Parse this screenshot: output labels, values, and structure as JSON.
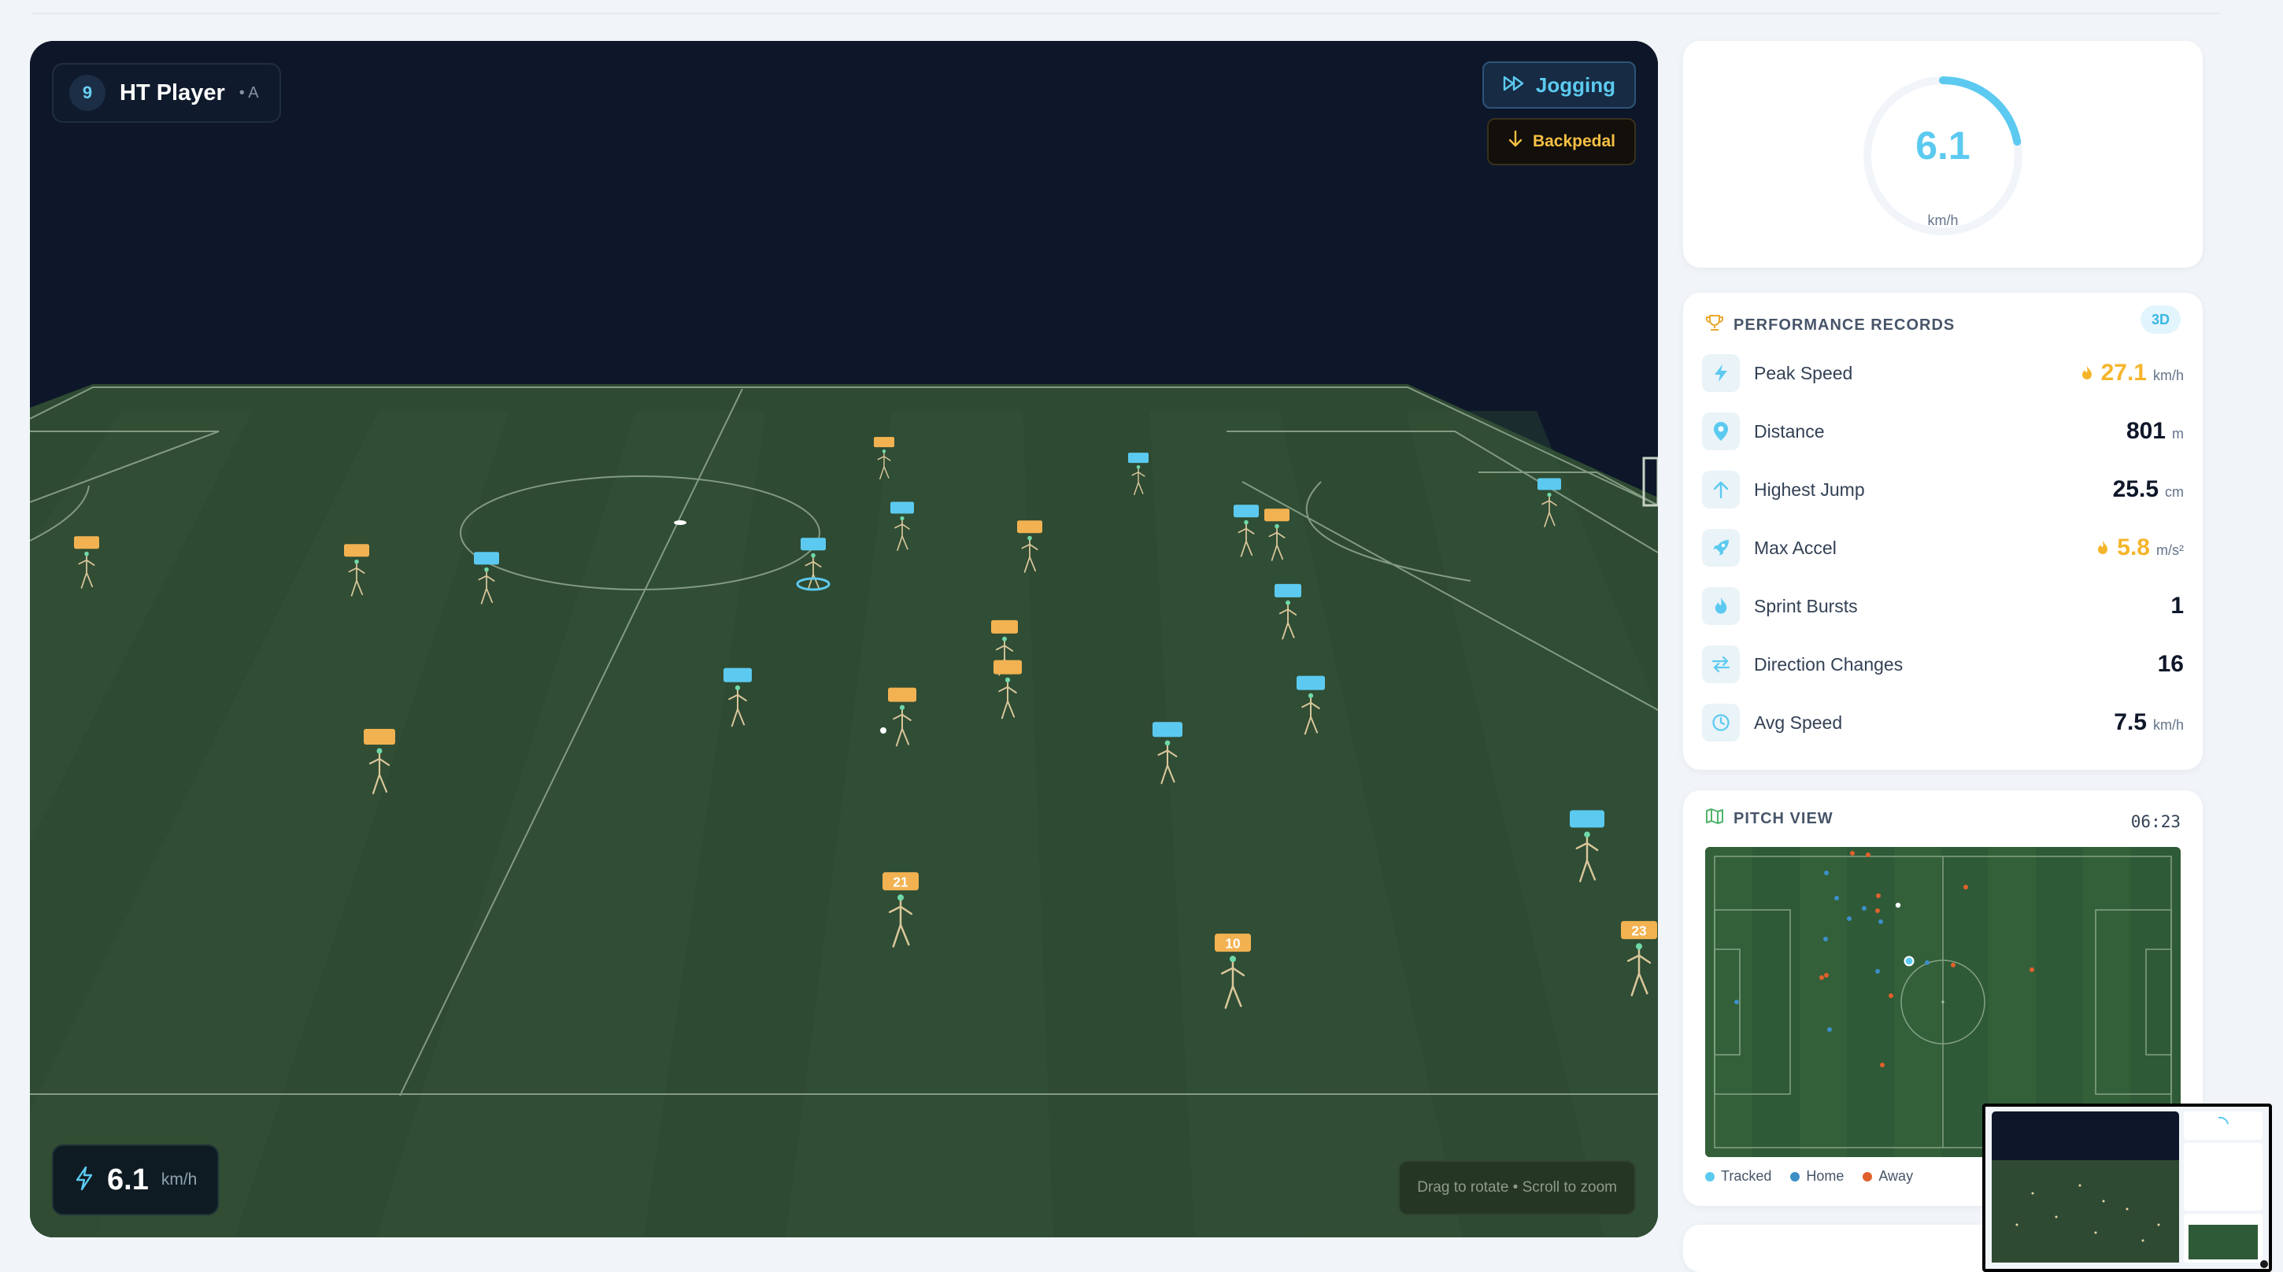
{
  "player": {
    "number": "9",
    "name": "HT Player",
    "team": "• A"
  },
  "movement": {
    "primary": "Jogging",
    "secondary": "Backpedal"
  },
  "live_speed": {
    "value": "6.1",
    "unit": "km/h"
  },
  "hint": "Drag to rotate • Scroll to zoom",
  "gauge": {
    "value": "6.1",
    "unit": "km/h",
    "fraction": 0.22
  },
  "records": {
    "title": "PERFORMANCE RECORDS",
    "badge": "3D",
    "items": [
      {
        "label": "Peak Speed",
        "value": "27.1",
        "unit": "km/h",
        "icon": "bolt-icon",
        "highlight": true
      },
      {
        "label": "Distance",
        "value": "801",
        "unit": "m",
        "icon": "map-pin-icon",
        "highlight": false
      },
      {
        "label": "Highest Jump",
        "value": "25.5",
        "unit": "cm",
        "icon": "arrow-up-icon",
        "highlight": false
      },
      {
        "label": "Max Accel",
        "value": "5.8",
        "unit": "m/s²",
        "icon": "rocket-icon",
        "highlight": true
      },
      {
        "label": "Sprint Bursts",
        "value": "1",
        "unit": "",
        "icon": "flame-icon",
        "highlight": false
      },
      {
        "label": "Direction Changes",
        "value": "16",
        "unit": "",
        "icon": "swap-arrows-icon",
        "highlight": false
      },
      {
        "label": "Avg Speed",
        "value": "7.5",
        "unit": "km/h",
        "icon": "clock-icon",
        "highlight": false
      }
    ]
  },
  "pitch_view": {
    "title": "PITCH VIEW",
    "time": "06:23",
    "legend": [
      {
        "label": "Tracked",
        "color": "#5ccaf0"
      },
      {
        "label": "Home",
        "color": "#3b8fc7"
      },
      {
        "label": "Away",
        "color": "#e0602c"
      }
    ]
  },
  "scene_players": [
    {
      "team": "away",
      "label": ""
    },
    {
      "team": "away",
      "label": ""
    },
    {
      "team": "home",
      "label": ""
    },
    {
      "team": "away",
      "label": ""
    },
    {
      "team": "home",
      "label": ""
    },
    {
      "team": "home",
      "label": ""
    },
    {
      "team": "away",
      "label": ""
    },
    {
      "team": "home",
      "label": ""
    },
    {
      "team": "away",
      "label": ""
    },
    {
      "team": "home",
      "label": ""
    },
    {
      "team": "away",
      "label": ""
    },
    {
      "team": "home",
      "label": ""
    },
    {
      "team": "away",
      "label": ""
    },
    {
      "team": "home",
      "label": ""
    },
    {
      "team": "away",
      "label": ""
    },
    {
      "team": "home",
      "label": ""
    },
    {
      "team": "home",
      "label": ""
    },
    {
      "team": "away",
      "label": ""
    },
    {
      "team": "home",
      "label": ""
    },
    {
      "team": "away",
      "label": "21"
    },
    {
      "team": "away",
      "label": "10"
    },
    {
      "team": "home",
      "label": ""
    },
    {
      "team": "away",
      "label": "23"
    }
  ]
}
